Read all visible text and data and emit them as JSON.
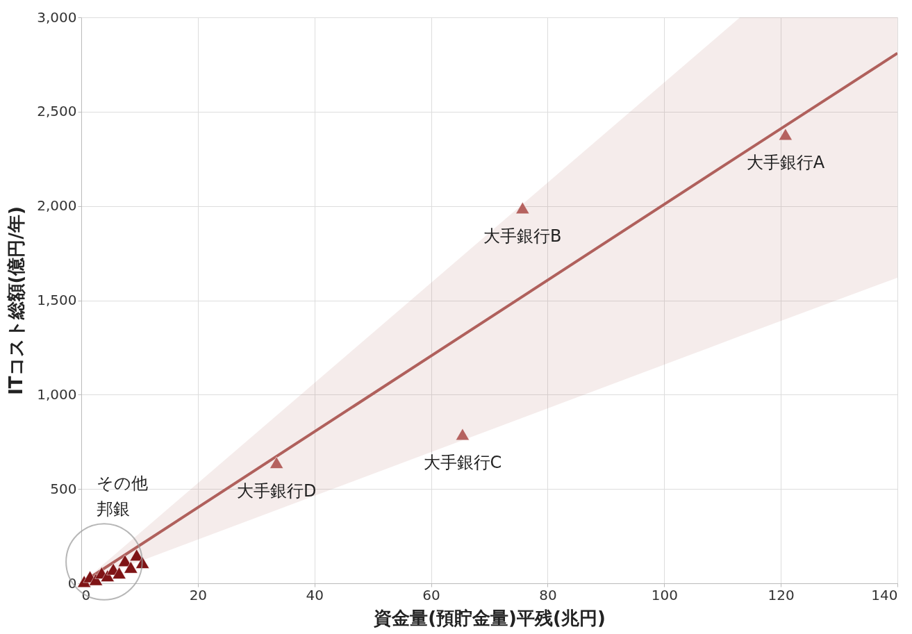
{
  "chart_data": {
    "type": "scatter",
    "xlabel": "資金量(預貯金量)平残(兆円)",
    "ylabel": "ITコスト総額(億円/年)",
    "xlim": [
      0,
      140
    ],
    "xticks": [
      0,
      20,
      40,
      60,
      80,
      100,
      120,
      140
    ],
    "ylim": [
      0,
      3000
    ],
    "yticks": [
      0,
      500,
      {
        "value": 1000,
        "label": "1,000"
      },
      {
        "value": 1500,
        "label": "1,500"
      },
      {
        "value": 2000,
        "label": "2,000"
      },
      {
        "value": 2500,
        "label": "2,500"
      },
      {
        "value": 3000,
        "label": "3,000"
      }
    ],
    "grid": true,
    "series": [
      {
        "type": "line",
        "marker": "none",
        "color": "#b0605c",
        "x": [
          0,
          113,
          140
        ],
        "values": [
          0,
          2270,
          2810
        ],
        "lower": [
          0,
          1310,
          1620
        ],
        "upper": [
          0,
          3000,
          3000
        ]
      },
      {
        "marker": "triangle",
        "color": "#7f1416",
        "x": [
          0.5,
          1.5,
          2.5,
          3.5,
          4.5,
          5.5,
          6.5,
          7.5,
          8.5,
          9.5,
          10.5
        ],
        "values": [
          10,
          35,
          20,
          55,
          40,
          75,
          55,
          120,
          85,
          150,
          110
        ]
      },
      {
        "marker": "triangle",
        "color": "#b5625f",
        "x": [
          120.8,
          75.7,
          65.4,
          33.5
        ],
        "values": [
          2380,
          1990,
          790,
          640
        ]
      }
    ],
    "annotations": [
      {
        "text": "大手銀行A",
        "x": 120.8,
        "y": 2380
      },
      {
        "text": "大手銀行B",
        "x": 75.7,
        "y": 1990
      },
      {
        "text": "大手銀行C",
        "x": 65.4,
        "y": 790
      },
      {
        "text": "大手銀行D",
        "x": 33.5,
        "y": 640
      },
      "その他",
      "邦銀"
    ]
  }
}
